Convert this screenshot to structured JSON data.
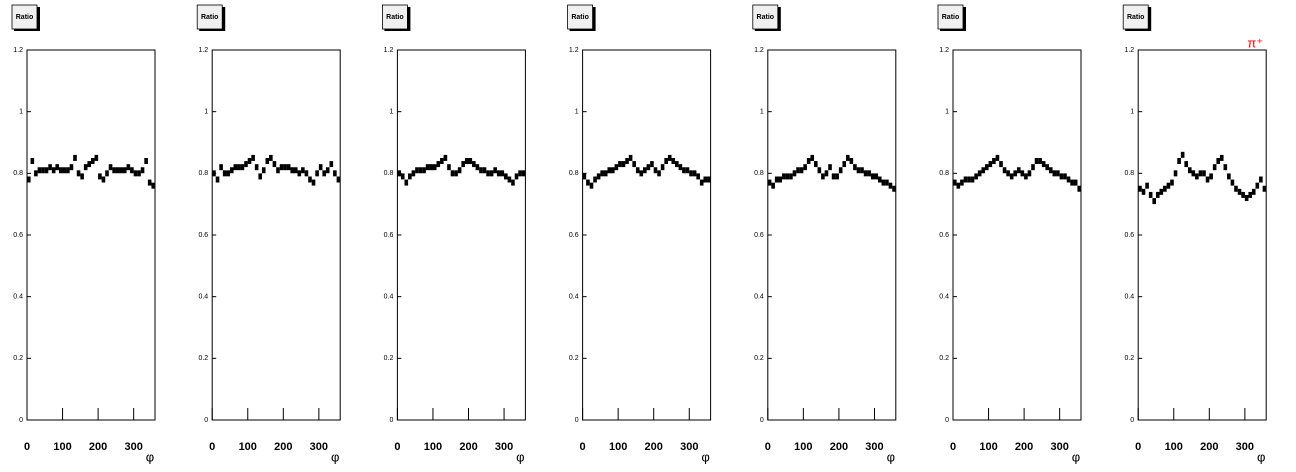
{
  "chart_data": [
    {
      "type": "scatter",
      "title": "Ratio",
      "x_label": "φ",
      "color": "#000000",
      "x": [
        5,
        15,
        25,
        35,
        45,
        55,
        65,
        75,
        85,
        95,
        105,
        115,
        125,
        135,
        145,
        155,
        165,
        175,
        185,
        195,
        205,
        215,
        225,
        235,
        245,
        255,
        265,
        275,
        285,
        295,
        305,
        315,
        325,
        335,
        345,
        355
      ],
      "values": [
        0.78,
        0.84,
        0.8,
        0.81,
        0.81,
        0.81,
        0.82,
        0.81,
        0.82,
        0.81,
        0.81,
        0.81,
        0.82,
        0.85,
        0.8,
        0.79,
        0.82,
        0.83,
        0.84,
        0.85,
        0.79,
        0.78,
        0.8,
        0.82,
        0.81,
        0.81,
        0.81,
        0.81,
        0.82,
        0.81,
        0.8,
        0.8,
        0.81,
        0.84,
        0.77,
        0.76
      ],
      "xlim": [
        0,
        360
      ],
      "ylim": [
        0,
        1.2
      ],
      "xticks": [
        0,
        100,
        200,
        300
      ],
      "yticks": [
        0,
        0.2,
        0.4,
        0.6,
        0.8,
        1,
        1.2
      ]
    },
    {
      "type": "scatter",
      "title": "Ratio",
      "x_label": "φ",
      "color": "#000000",
      "x": [
        5,
        15,
        25,
        35,
        45,
        55,
        65,
        75,
        85,
        95,
        105,
        115,
        125,
        135,
        145,
        155,
        165,
        175,
        185,
        195,
        205,
        215,
        225,
        235,
        245,
        255,
        265,
        275,
        285,
        295,
        305,
        315,
        325,
        335,
        345,
        355
      ],
      "values": [
        0.8,
        0.78,
        0.82,
        0.8,
        0.8,
        0.81,
        0.82,
        0.82,
        0.82,
        0.83,
        0.84,
        0.85,
        0.82,
        0.79,
        0.81,
        0.84,
        0.85,
        0.83,
        0.81,
        0.82,
        0.82,
        0.82,
        0.81,
        0.81,
        0.8,
        0.81,
        0.8,
        0.78,
        0.77,
        0.8,
        0.82,
        0.8,
        0.81,
        0.83,
        0.8,
        0.78
      ],
      "xlim": [
        0,
        360
      ],
      "ylim": [
        0,
        1.2
      ],
      "xticks": [
        0,
        100,
        200,
        300
      ],
      "yticks": [
        0,
        0.2,
        0.4,
        0.6,
        0.8,
        1,
        1.2
      ]
    },
    {
      "type": "scatter",
      "title": "Ratio",
      "x_label": "φ",
      "color": "#000000",
      "x": [
        5,
        15,
        25,
        35,
        45,
        55,
        65,
        75,
        85,
        95,
        105,
        115,
        125,
        135,
        145,
        155,
        165,
        175,
        185,
        195,
        205,
        215,
        225,
        235,
        245,
        255,
        265,
        275,
        285,
        295,
        305,
        315,
        325,
        335,
        345,
        355
      ],
      "values": [
        0.8,
        0.79,
        0.77,
        0.79,
        0.8,
        0.81,
        0.81,
        0.81,
        0.82,
        0.82,
        0.82,
        0.83,
        0.84,
        0.85,
        0.82,
        0.8,
        0.8,
        0.81,
        0.83,
        0.84,
        0.84,
        0.83,
        0.82,
        0.81,
        0.81,
        0.8,
        0.8,
        0.81,
        0.8,
        0.8,
        0.79,
        0.78,
        0.77,
        0.79,
        0.8,
        0.8
      ],
      "xlim": [
        0,
        360
      ],
      "ylim": [
        0,
        1.2
      ],
      "xticks": [
        0,
        100,
        200,
        300
      ],
      "yticks": [
        0,
        0.2,
        0.4,
        0.6,
        0.8,
        1,
        1.2
      ]
    },
    {
      "type": "scatter",
      "title": "Ratio",
      "x_label": "φ",
      "color": "#000000",
      "x": [
        5,
        15,
        25,
        35,
        45,
        55,
        65,
        75,
        85,
        95,
        105,
        115,
        125,
        135,
        145,
        155,
        165,
        175,
        185,
        195,
        205,
        215,
        225,
        235,
        245,
        255,
        265,
        275,
        285,
        295,
        305,
        315,
        325,
        335,
        345,
        355
      ],
      "values": [
        0.79,
        0.77,
        0.76,
        0.78,
        0.79,
        0.8,
        0.8,
        0.81,
        0.81,
        0.82,
        0.83,
        0.83,
        0.84,
        0.85,
        0.83,
        0.81,
        0.8,
        0.81,
        0.82,
        0.83,
        0.81,
        0.8,
        0.82,
        0.84,
        0.85,
        0.84,
        0.83,
        0.82,
        0.81,
        0.81,
        0.8,
        0.8,
        0.79,
        0.77,
        0.78,
        0.78
      ],
      "xlim": [
        0,
        360
      ],
      "ylim": [
        0,
        1.2
      ],
      "xticks": [
        0,
        100,
        200,
        300
      ],
      "yticks": [
        0,
        0.2,
        0.4,
        0.6,
        0.8,
        1,
        1.2
      ]
    },
    {
      "type": "scatter",
      "title": "Ratio",
      "x_label": "φ",
      "color": "#000000",
      "x": [
        5,
        15,
        25,
        35,
        45,
        55,
        65,
        75,
        85,
        95,
        105,
        115,
        125,
        135,
        145,
        155,
        165,
        175,
        185,
        195,
        205,
        215,
        225,
        235,
        245,
        255,
        265,
        275,
        285,
        295,
        305,
        315,
        325,
        335,
        345,
        355
      ],
      "values": [
        0.77,
        0.76,
        0.78,
        0.78,
        0.79,
        0.79,
        0.79,
        0.8,
        0.81,
        0.81,
        0.82,
        0.84,
        0.85,
        0.83,
        0.81,
        0.79,
        0.8,
        0.82,
        0.79,
        0.79,
        0.81,
        0.83,
        0.85,
        0.84,
        0.82,
        0.81,
        0.81,
        0.8,
        0.8,
        0.79,
        0.79,
        0.78,
        0.77,
        0.77,
        0.76,
        0.75
      ],
      "xlim": [
        0,
        360
      ],
      "ylim": [
        0,
        1.2
      ],
      "xticks": [
        0,
        100,
        200,
        300
      ],
      "yticks": [
        0,
        0.2,
        0.4,
        0.6,
        0.8,
        1,
        1.2
      ]
    },
    {
      "type": "scatter",
      "title": "Ratio",
      "x_label": "φ",
      "color": "#000000",
      "x": [
        5,
        15,
        25,
        35,
        45,
        55,
        65,
        75,
        85,
        95,
        105,
        115,
        125,
        135,
        145,
        155,
        165,
        175,
        185,
        195,
        205,
        215,
        225,
        235,
        245,
        255,
        265,
        275,
        285,
        295,
        305,
        315,
        325,
        335,
        345,
        355
      ],
      "values": [
        0.77,
        0.76,
        0.77,
        0.78,
        0.78,
        0.78,
        0.79,
        0.8,
        0.81,
        0.82,
        0.83,
        0.84,
        0.85,
        0.83,
        0.81,
        0.8,
        0.79,
        0.8,
        0.81,
        0.8,
        0.79,
        0.8,
        0.82,
        0.84,
        0.84,
        0.83,
        0.82,
        0.81,
        0.8,
        0.8,
        0.79,
        0.79,
        0.78,
        0.77,
        0.77,
        0.75
      ],
      "xlim": [
        0,
        360
      ],
      "ylim": [
        0,
        1.2
      ],
      "xticks": [
        0,
        100,
        200,
        300
      ],
      "yticks": [
        0,
        0.2,
        0.4,
        0.6,
        0.8,
        1,
        1.2
      ]
    },
    {
      "type": "scatter",
      "title": "Ratio",
      "x_label": "φ",
      "color": "#000000",
      "annotation": "π⁺",
      "annotation_color": "#ff0000",
      "x": [
        5,
        15,
        25,
        35,
        45,
        55,
        65,
        75,
        85,
        95,
        105,
        115,
        125,
        135,
        145,
        155,
        165,
        175,
        185,
        195,
        205,
        215,
        225,
        235,
        245,
        255,
        265,
        275,
        285,
        295,
        305,
        315,
        325,
        335,
        345,
        355
      ],
      "values": [
        0.75,
        0.74,
        0.76,
        0.73,
        0.71,
        0.73,
        0.74,
        0.75,
        0.76,
        0.77,
        0.8,
        0.84,
        0.86,
        0.83,
        0.81,
        0.8,
        0.79,
        0.8,
        0.8,
        0.78,
        0.79,
        0.82,
        0.84,
        0.85,
        0.82,
        0.79,
        0.77,
        0.75,
        0.74,
        0.73,
        0.72,
        0.73,
        0.74,
        0.76,
        0.78,
        0.75
      ],
      "xlim": [
        0,
        360
      ],
      "ylim": [
        0,
        1.2
      ],
      "xticks": [
        0,
        100,
        200,
        300
      ],
      "yticks": [
        0,
        0.2,
        0.4,
        0.6,
        0.8,
        1,
        1.2
      ]
    }
  ]
}
